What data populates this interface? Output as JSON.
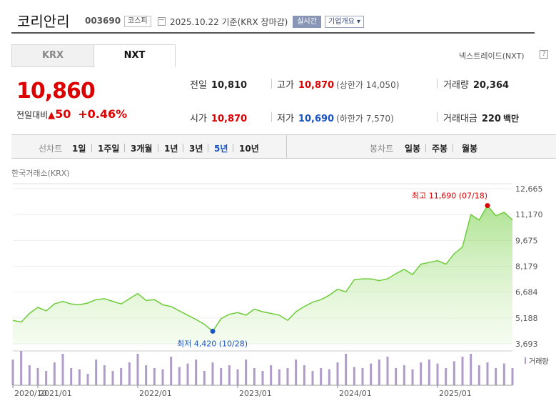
{
  "header": {
    "company_name": "코리안리",
    "stock_code": "003690",
    "market_badge": "코스피",
    "date_text": "2025.10.22  기준(KRX 장마감)",
    "realtime_badge": "실시간",
    "company_info_button": "기업개요 ▾"
  },
  "tabs": [
    "KRX",
    "NXT"
  ],
  "nxt_link": "넥스트레이드(NXT)",
  "help_icon": "?",
  "price": {
    "current": "10,860",
    "change_label": "전일대비",
    "change_arrow": "▲",
    "change_value": "50",
    "change_pct": "+0.46%"
  },
  "stats": {
    "prev_close_label": "전일",
    "prev_close": "10,810",
    "high_label": "고가",
    "high": "10,870",
    "upper_limit": "(상한가 14,050)",
    "volume_label": "거래량",
    "volume": "20,364",
    "open_label": "시가",
    "open": "10,870",
    "low_label": "저가",
    "low": "10,690",
    "lower_limit": "(하한가 7,570)",
    "value_label": "거래대금",
    "value": "220",
    "value_unit": "백만"
  },
  "period_bar": {
    "line_chart_label": "선차트",
    "periods": [
      "1일",
      "1주일",
      "3개월",
      "1년",
      "3년",
      "5년",
      "10년"
    ],
    "selected": "5년",
    "candle_label": "봉차트",
    "candle_periods": [
      "일봉",
      "주봉",
      "월봉"
    ]
  },
  "source_label": "한국거래소(KRX)",
  "colors": {
    "up": "#dd0000",
    "down": "#1a55c4",
    "line": "#6dcc3a",
    "fill": "#d8f3c4",
    "volume": "#b09cc8"
  },
  "chart_data": {
    "type": "area",
    "title": "",
    "yticks": [
      "12,665",
      "11,170",
      "9,675",
      "8,179",
      "6,684",
      "5,188",
      "3,693"
    ],
    "ylim": [
      3693,
      12665
    ],
    "xticks": [
      "2020/10",
      "2021/01",
      "2022/01",
      "2023/01",
      "2024/01",
      "2025/01"
    ],
    "x_range": [
      "2020/10",
      "2025/10"
    ],
    "series": [
      {
        "x": [
          "2020/10",
          "2020/11",
          "2020/12",
          "2021/01",
          "2021/02",
          "2021/03",
          "2021/04",
          "2021/05",
          "2021/06",
          "2021/07",
          "2021/08",
          "2021/09",
          "2021/10",
          "2021/11",
          "2021/12",
          "2022/01",
          "2022/02",
          "2022/03",
          "2022/04",
          "2022/05",
          "2022/06",
          "2022/07",
          "2022/08",
          "2022/09",
          "2022/10",
          "2022/11",
          "2022/12",
          "2023/01",
          "2023/02",
          "2023/03",
          "2023/04",
          "2023/05",
          "2023/06",
          "2023/07",
          "2023/08",
          "2023/09",
          "2023/10",
          "2023/11",
          "2023/12",
          "2024/01",
          "2024/02",
          "2024/03",
          "2024/04",
          "2024/05",
          "2024/06",
          "2024/07",
          "2024/08",
          "2024/09",
          "2024/10",
          "2024/11",
          "2024/12",
          "2025/01",
          "2025/02",
          "2025/03",
          "2025/04",
          "2025/05",
          "2025/06",
          "2025/07",
          "2025/08",
          "2025/09",
          "2025/10"
        ],
        "values": [
          5050,
          4950,
          5450,
          5800,
          5600,
          6000,
          6150,
          6000,
          5950,
          6050,
          6250,
          6300,
          6150,
          6000,
          6300,
          6600,
          6200,
          6250,
          5950,
          5850,
          5600,
          5350,
          5100,
          4820,
          4420,
          5150,
          5400,
          5500,
          5350,
          5700,
          5550,
          5450,
          5350,
          5050,
          5550,
          5850,
          6100,
          6250,
          6500,
          6850,
          6700,
          7400,
          7450,
          7450,
          7350,
          7450,
          7750,
          8000,
          7700,
          8300,
          8400,
          8500,
          8300,
          8900,
          9300,
          11170,
          10850,
          11690,
          11100,
          11300,
          10860
        ]
      }
    ],
    "high_annotation": "최고 11,690 (07/18)",
    "low_annotation": "최저 4,420 (10/28)",
    "volume_label": "거래량",
    "volume": [
      45,
      60,
      35,
      30,
      25,
      40,
      55,
      30,
      28,
      20,
      45,
      35,
      25,
      30,
      40,
      55,
      35,
      30,
      28,
      50,
      32,
      38,
      45,
      25,
      40,
      30,
      35,
      28,
      45,
      30,
      25,
      35,
      28,
      30,
      45,
      35,
      25,
      30,
      28,
      40,
      55,
      32,
      30,
      38,
      45,
      50,
      30,
      35,
      28,
      40,
      45,
      38,
      30,
      42,
      50,
      55,
      35,
      40,
      30,
      38,
      30
    ]
  }
}
